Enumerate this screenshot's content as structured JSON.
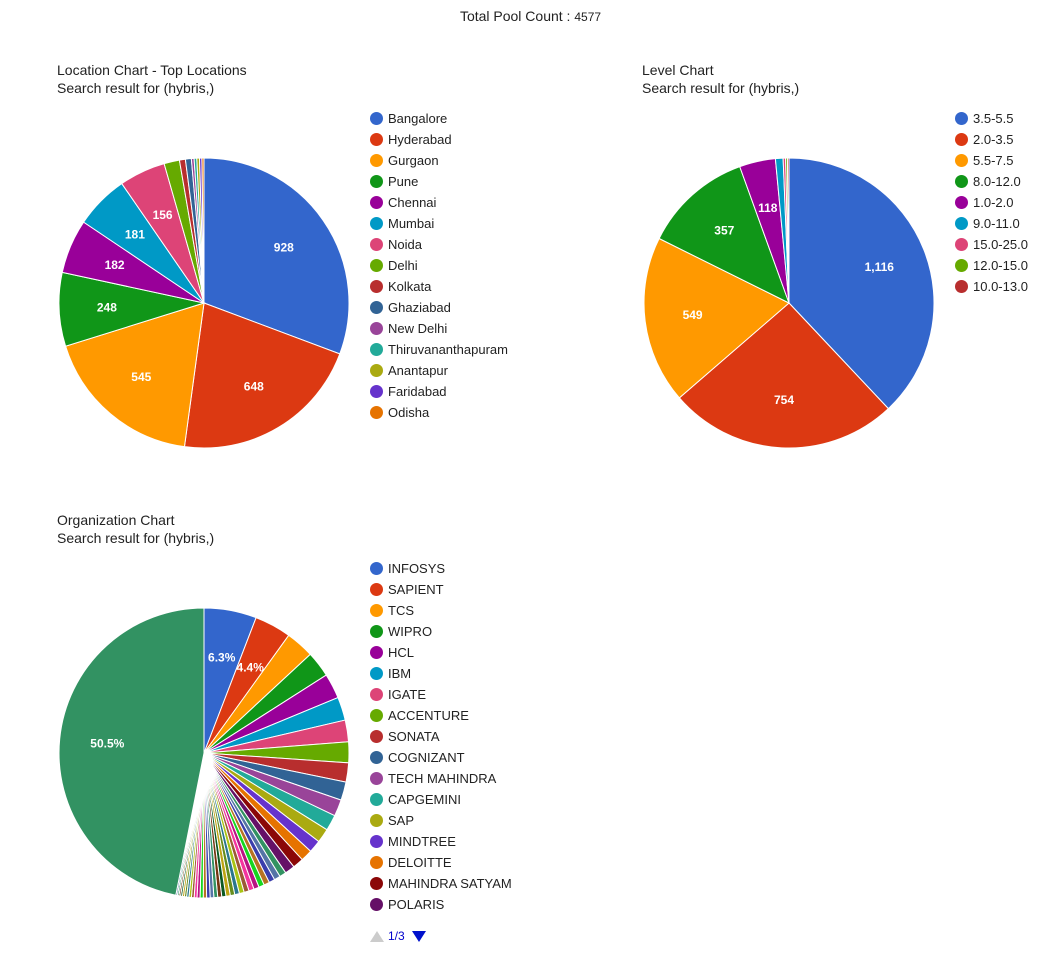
{
  "header": {
    "label": "Total Pool Count :",
    "value": "4577"
  },
  "charts": {
    "location": {
      "title": "Location Chart - Top Locations",
      "subtitle": "Search result for (hybris,)"
    },
    "level": {
      "title": "Level Chart",
      "subtitle": "Search result for (hybris,)"
    },
    "organization": {
      "title": "Organization Chart",
      "subtitle": "Search result for (hybris,)",
      "pager": "1/3"
    }
  },
  "chart_data": [
    {
      "type": "pie",
      "title": "Location Chart - Top Locations",
      "subtitle": "Search result for (hybris,)",
      "legend_position": "right",
      "categories": [
        "Bangalore",
        "Hyderabad",
        "Gurgaon",
        "Pune",
        "Chennai",
        "Mumbai",
        "Noida",
        "Delhi",
        "Kolkata",
        "Ghaziabad",
        "New Delhi",
        "Thiruvananthapuram",
        "Anantapur",
        "Faridabad",
        "Odisha"
      ],
      "values": [
        928,
        648,
        545,
        248,
        182,
        181,
        156,
        52,
        20,
        20,
        9,
        9,
        9,
        8,
        7
      ],
      "data_labels": [
        "928",
        "648",
        "545",
        "248",
        "182",
        "181",
        "156",
        "",
        "",
        "",
        "",
        "",
        "",
        "",
        ""
      ],
      "colors": [
        "#3366cc",
        "#dc3912",
        "#ff9900",
        "#109618",
        "#990099",
        "#0099c6",
        "#dd4477",
        "#66aa00",
        "#b82e2e",
        "#316395",
        "#994499",
        "#22aa99",
        "#aaaa11",
        "#6633cc",
        "#e67300"
      ]
    },
    {
      "type": "pie",
      "title": "Level Chart",
      "subtitle": "Search result for (hybris,)",
      "legend_position": "right",
      "categories": [
        "3.5-5.5",
        "2.0-3.5",
        "5.5-7.5",
        "8.0-12.0",
        "1.0-2.0",
        "9.0-11.0",
        "15.0-25.0",
        "12.0-15.0",
        "10.0-13.0"
      ],
      "values": [
        1116,
        754,
        549,
        357,
        118,
        25,
        8,
        6,
        5
      ],
      "data_labels": [
        "1,116",
        "754",
        "549",
        "357",
        "118",
        "",
        "",
        "",
        ""
      ],
      "colors": [
        "#3366cc",
        "#dc3912",
        "#ff9900",
        "#109618",
        "#990099",
        "#0099c6",
        "#dd4477",
        "#66aa00",
        "#b82e2e"
      ]
    },
    {
      "type": "pie",
      "title": "Organization Chart",
      "subtitle": "Search result for (hybris,)",
      "legend_position": "right",
      "categories": [
        "INFOSYS",
        "SAPIENT",
        "TCS",
        "WIPRO",
        "HCL",
        "IBM",
        "IGATE",
        "ACCENTURE",
        "SONATA",
        "COGNIZANT",
        "TECH MAHINDRA",
        "CAPGEMINI",
        "SAP",
        "MINDTREE",
        "DELOITTE",
        "MAHINDRA SATYAM",
        "POLARIS"
      ],
      "percentages": [
        6.3,
        4.4,
        3.4,
        3.1,
        3.0,
        2.8,
        2.6,
        2.5,
        2.3,
        2.2,
        2.0,
        1.9,
        1.7,
        1.5,
        1.4,
        1.3,
        1.2
      ],
      "other_slices_percent": [
        0.8,
        0.75,
        0.7,
        0.68,
        0.66,
        0.64,
        0.62,
        0.6,
        0.58,
        0.56,
        0.54,
        0.52,
        0.5,
        0.48,
        0.46,
        0.44,
        0.42,
        0.4,
        0.38,
        0.36,
        0.34,
        0.32,
        0.3,
        0.28,
        0.26,
        0.24,
        0.22,
        0.2,
        0.19,
        0.18
      ],
      "largest_slice_percent": 50.5,
      "data_labels": [
        "6.3%",
        "4.4%",
        "",
        "",
        "",
        "",
        "",
        "",
        "",
        "",
        "",
        "",
        "",
        "",
        "",
        "",
        ""
      ],
      "largest_slice_label": "50.5%",
      "colors": [
        "#3366cc",
        "#dc3912",
        "#ff9900",
        "#109618",
        "#990099",
        "#0099c6",
        "#dd4477",
        "#66aa00",
        "#b82e2e",
        "#316395",
        "#994499",
        "#22aa99",
        "#aaaa11",
        "#6633cc",
        "#e67300",
        "#8b0707",
        "#651067"
      ],
      "other_colors": [
        "#329262",
        "#5574a6",
        "#3b3eac",
        "#b77322",
        "#16d620",
        "#b91383",
        "#f4359e",
        "#9c5935",
        "#a9c413",
        "#2a778d",
        "#668d1c",
        "#bea413",
        "#0c5922",
        "#743411"
      ],
      "largest_slice_color": "#329262"
    }
  ]
}
